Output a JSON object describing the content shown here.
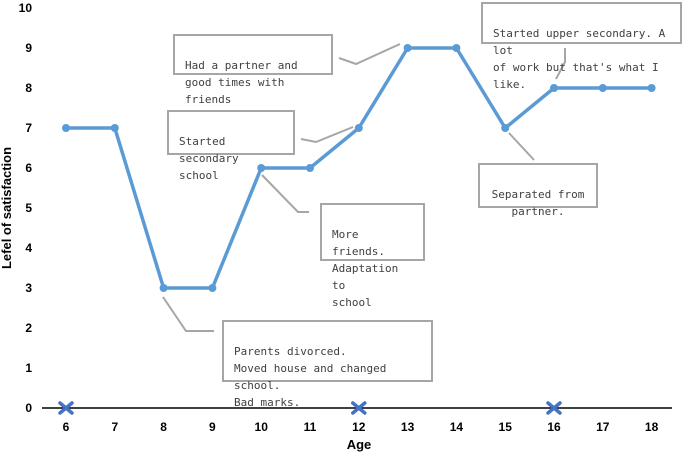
{
  "chart_data": {
    "type": "line",
    "xlabel": "Age",
    "ylabel": "Lefel of satisfaction",
    "xlim": [
      6,
      18
    ],
    "ylim": [
      0,
      10
    ],
    "x_ticks": [
      "6",
      "7",
      "8",
      "9",
      "10",
      "11",
      "12",
      "13",
      "14",
      "15",
      "16",
      "17",
      "18"
    ],
    "y_ticks": [
      "0",
      "1",
      "2",
      "3",
      "4",
      "5",
      "6",
      "7",
      "8",
      "9",
      "10"
    ],
    "grid": false,
    "series": [
      {
        "color": "#5b9bd5",
        "points": [
          {
            "x": 6,
            "y": 7
          },
          {
            "x": 7,
            "y": 7
          },
          {
            "x": 8,
            "y": 3
          },
          {
            "x": 9,
            "y": 3
          },
          {
            "x": 10,
            "y": 6
          },
          {
            "x": 11,
            "y": 6
          },
          {
            "x": 12,
            "y": 7
          },
          {
            "x": 13,
            "y": 9
          },
          {
            "x": 14,
            "y": 9
          },
          {
            "x": 15,
            "y": 7
          },
          {
            "x": 16,
            "y": 8
          },
          {
            "x": 17,
            "y": 8
          },
          {
            "x": 18,
            "y": 8
          }
        ]
      }
    ],
    "x_axis_markers": {
      "ages": [
        6,
        12,
        16
      ],
      "symbol": "x-icon",
      "color": "#4472c4"
    },
    "annotations": [
      {
        "id": "divorce",
        "text": "Parents divorced.\nMoved house and changed school.\nBad marks.",
        "anchor": {
          "x": 8,
          "y": 3
        }
      },
      {
        "id": "friends",
        "text": "More friends.\nAdaptation to\nschool",
        "anchor": {
          "x": 10,
          "y": 6
        }
      },
      {
        "id": "secondary",
        "text": "Started secondary\nschool",
        "anchor": {
          "x": 12,
          "y": 7
        }
      },
      {
        "id": "partner",
        "text": "Had a partner and\ngood times with friends",
        "anchor": {
          "x": 13,
          "y": 9
        }
      },
      {
        "id": "separated",
        "text": "Separated from\npartner.",
        "anchor": {
          "x": 15,
          "y": 7
        }
      },
      {
        "id": "upper",
        "text": "Started upper secondary. A lot\nof work but that's what I like.",
        "anchor": {
          "x": 16,
          "y": 8
        }
      }
    ],
    "colors": {
      "line": "#5b9bd5",
      "axis": "#000000",
      "annotation_border": "#a6a6a6",
      "annotation_text": "#404040",
      "leader": "#a6a6a6"
    }
  }
}
